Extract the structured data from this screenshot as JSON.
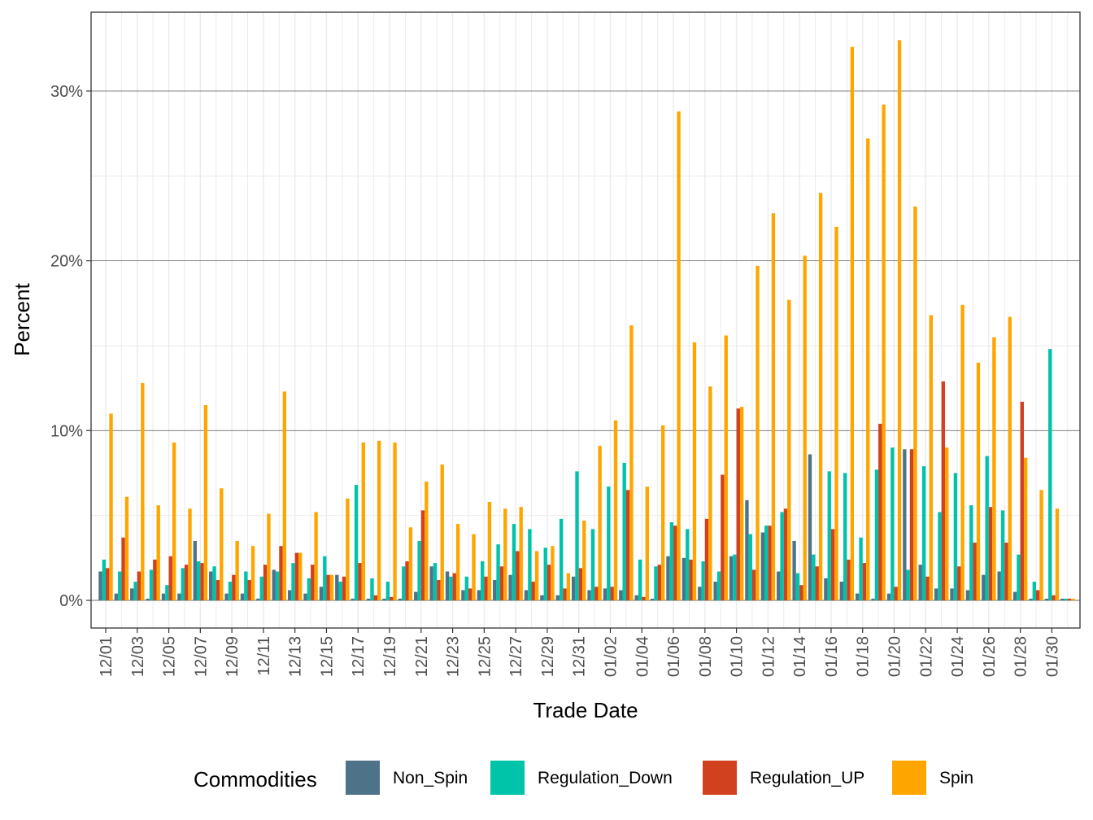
{
  "chart_data": {
    "type": "bar",
    "title": "",
    "xlabel": "Trade Date",
    "ylabel": "Percent",
    "ylim": [
      -1.5,
      34.5
    ],
    "yticks": [
      0,
      10,
      20,
      30
    ],
    "ytick_labels": [
      "0%",
      "10%",
      "20%",
      "30%"
    ],
    "grid": true,
    "legend": {
      "title": "Commodities",
      "position": "bottom"
    },
    "colors": {
      "Non_Spin": "#4e7287",
      "Regulation_Down": "#00c4aa",
      "Regulation_UP": "#d1411f",
      "Spin": "#ffa500"
    },
    "categories": [
      "12/01",
      "12/02",
      "12/03",
      "12/04",
      "12/05",
      "12/06",
      "12/07",
      "12/08",
      "12/09",
      "12/10",
      "12/11",
      "12/12",
      "12/13",
      "12/14",
      "12/15",
      "12/16",
      "12/17",
      "12/18",
      "12/19",
      "12/20",
      "12/21",
      "12/22",
      "12/23",
      "12/24",
      "12/25",
      "12/26",
      "12/27",
      "12/28",
      "12/29",
      "12/30",
      "12/31",
      "01/01",
      "01/02",
      "01/03",
      "01/04",
      "01/05",
      "01/06",
      "01/07",
      "01/08",
      "01/09",
      "01/10",
      "01/11",
      "01/12",
      "01/13",
      "01/14",
      "01/15",
      "01/16",
      "01/17",
      "01/18",
      "01/19",
      "01/20",
      "01/21",
      "01/22",
      "01/23",
      "01/24",
      "01/25",
      "01/26",
      "01/27",
      "01/28",
      "01/29",
      "01/30",
      "01/31"
    ],
    "tick_labels": [
      "12/01",
      "12/03",
      "12/05",
      "12/07",
      "12/09",
      "12/11",
      "12/13",
      "12/15",
      "12/17",
      "12/19",
      "12/21",
      "12/23",
      "12/25",
      "12/27",
      "12/29",
      "12/31",
      "01/02",
      "01/04",
      "01/06",
      "01/08",
      "01/10",
      "01/12",
      "01/14",
      "01/16",
      "01/18",
      "01/20",
      "01/22",
      "01/24",
      "01/26",
      "01/28",
      "01/30"
    ],
    "series": [
      {
        "name": "Non_Spin",
        "values": [
          1.7,
          0.4,
          0.7,
          0.1,
          0.4,
          0.4,
          3.5,
          1.7,
          0.4,
          0.4,
          0.1,
          1.8,
          0.6,
          0.4,
          0.8,
          1.5,
          0.1,
          0.1,
          0.1,
          0.1,
          0.5,
          2.0,
          1.7,
          0.6,
          0.6,
          1.2,
          1.5,
          0.6,
          0.3,
          0.3,
          1.4,
          0.6,
          0.7,
          0.6,
          0.3,
          0.1,
          2.6,
          2.5,
          0.8,
          1.1,
          2.6,
          5.9,
          4.0,
          1.7,
          3.5,
          8.6,
          1.3,
          1.1,
          0.4,
          0.1,
          0.4,
          8.9,
          2.1,
          0.7,
          0.7,
          0.6,
          1.5,
          1.7,
          0.5,
          0.1,
          0.1,
          0.1
        ]
      },
      {
        "name": "Regulation_Down",
        "values": [
          2.4,
          1.7,
          1.1,
          1.8,
          0.9,
          1.9,
          2.3,
          2.0,
          1.1,
          1.7,
          1.4,
          1.7,
          2.2,
          1.3,
          2.6,
          1.1,
          6.8,
          1.3,
          1.1,
          2.0,
          3.5,
          2.2,
          1.4,
          1.4,
          2.3,
          3.3,
          4.5,
          4.2,
          3.1,
          4.8,
          7.6,
          4.2,
          6.7,
          8.1,
          2.4,
          2.0,
          4.6,
          4.2,
          2.3,
          1.7,
          2.7,
          3.9,
          4.4,
          5.2,
          1.6,
          2.7,
          7.6,
          7.5,
          3.7,
          7.7,
          9.0,
          1.8,
          7.9,
          5.2,
          7.5,
          5.6,
          8.5,
          5.3,
          2.7,
          1.1,
          14.8,
          0.1
        ]
      },
      {
        "name": "Regulation_UP",
        "values": [
          1.9,
          3.7,
          1.7,
          2.4,
          2.6,
          2.1,
          2.2,
          1.2,
          1.5,
          1.2,
          2.1,
          3.2,
          2.8,
          2.1,
          1.5,
          1.4,
          2.2,
          0.3,
          0.2,
          2.3,
          5.3,
          1.2,
          1.6,
          0.7,
          1.4,
          2.0,
          2.9,
          1.1,
          2.1,
          0.7,
          1.9,
          0.8,
          0.8,
          6.5,
          0.2,
          2.1,
          4.4,
          2.4,
          4.8,
          7.4,
          11.3,
          1.8,
          4.4,
          5.4,
          0.9,
          2.0,
          4.2,
          2.4,
          2.2,
          10.4,
          0.8,
          8.9,
          1.4,
          12.9,
          2.0,
          3.4,
          5.5,
          3.4,
          11.7,
          0.6,
          0.3,
          0.1
        ]
      },
      {
        "name": "Spin",
        "values": [
          11.0,
          6.1,
          12.8,
          5.6,
          9.3,
          5.4,
          11.5,
          6.6,
          3.5,
          3.2,
          5.1,
          12.3,
          2.8,
          5.2,
          1.5,
          6.0,
          9.3,
          9.4,
          9.3,
          4.3,
          7.0,
          8.0,
          4.5,
          3.9,
          5.8,
          5.4,
          5.5,
          2.9,
          3.2,
          1.6,
          4.7,
          9.1,
          10.6,
          16.2,
          6.7,
          10.3,
          28.8,
          15.2,
          12.6,
          15.6,
          11.4,
          19.7,
          22.8,
          17.7,
          20.3,
          24.0,
          22.0,
          32.6,
          27.2,
          29.2,
          33.0,
          23.2,
          16.8,
          9.0,
          17.4,
          14.0,
          15.5,
          16.7,
          8.4,
          6.5,
          5.4,
          0.1
        ]
      }
    ]
  }
}
